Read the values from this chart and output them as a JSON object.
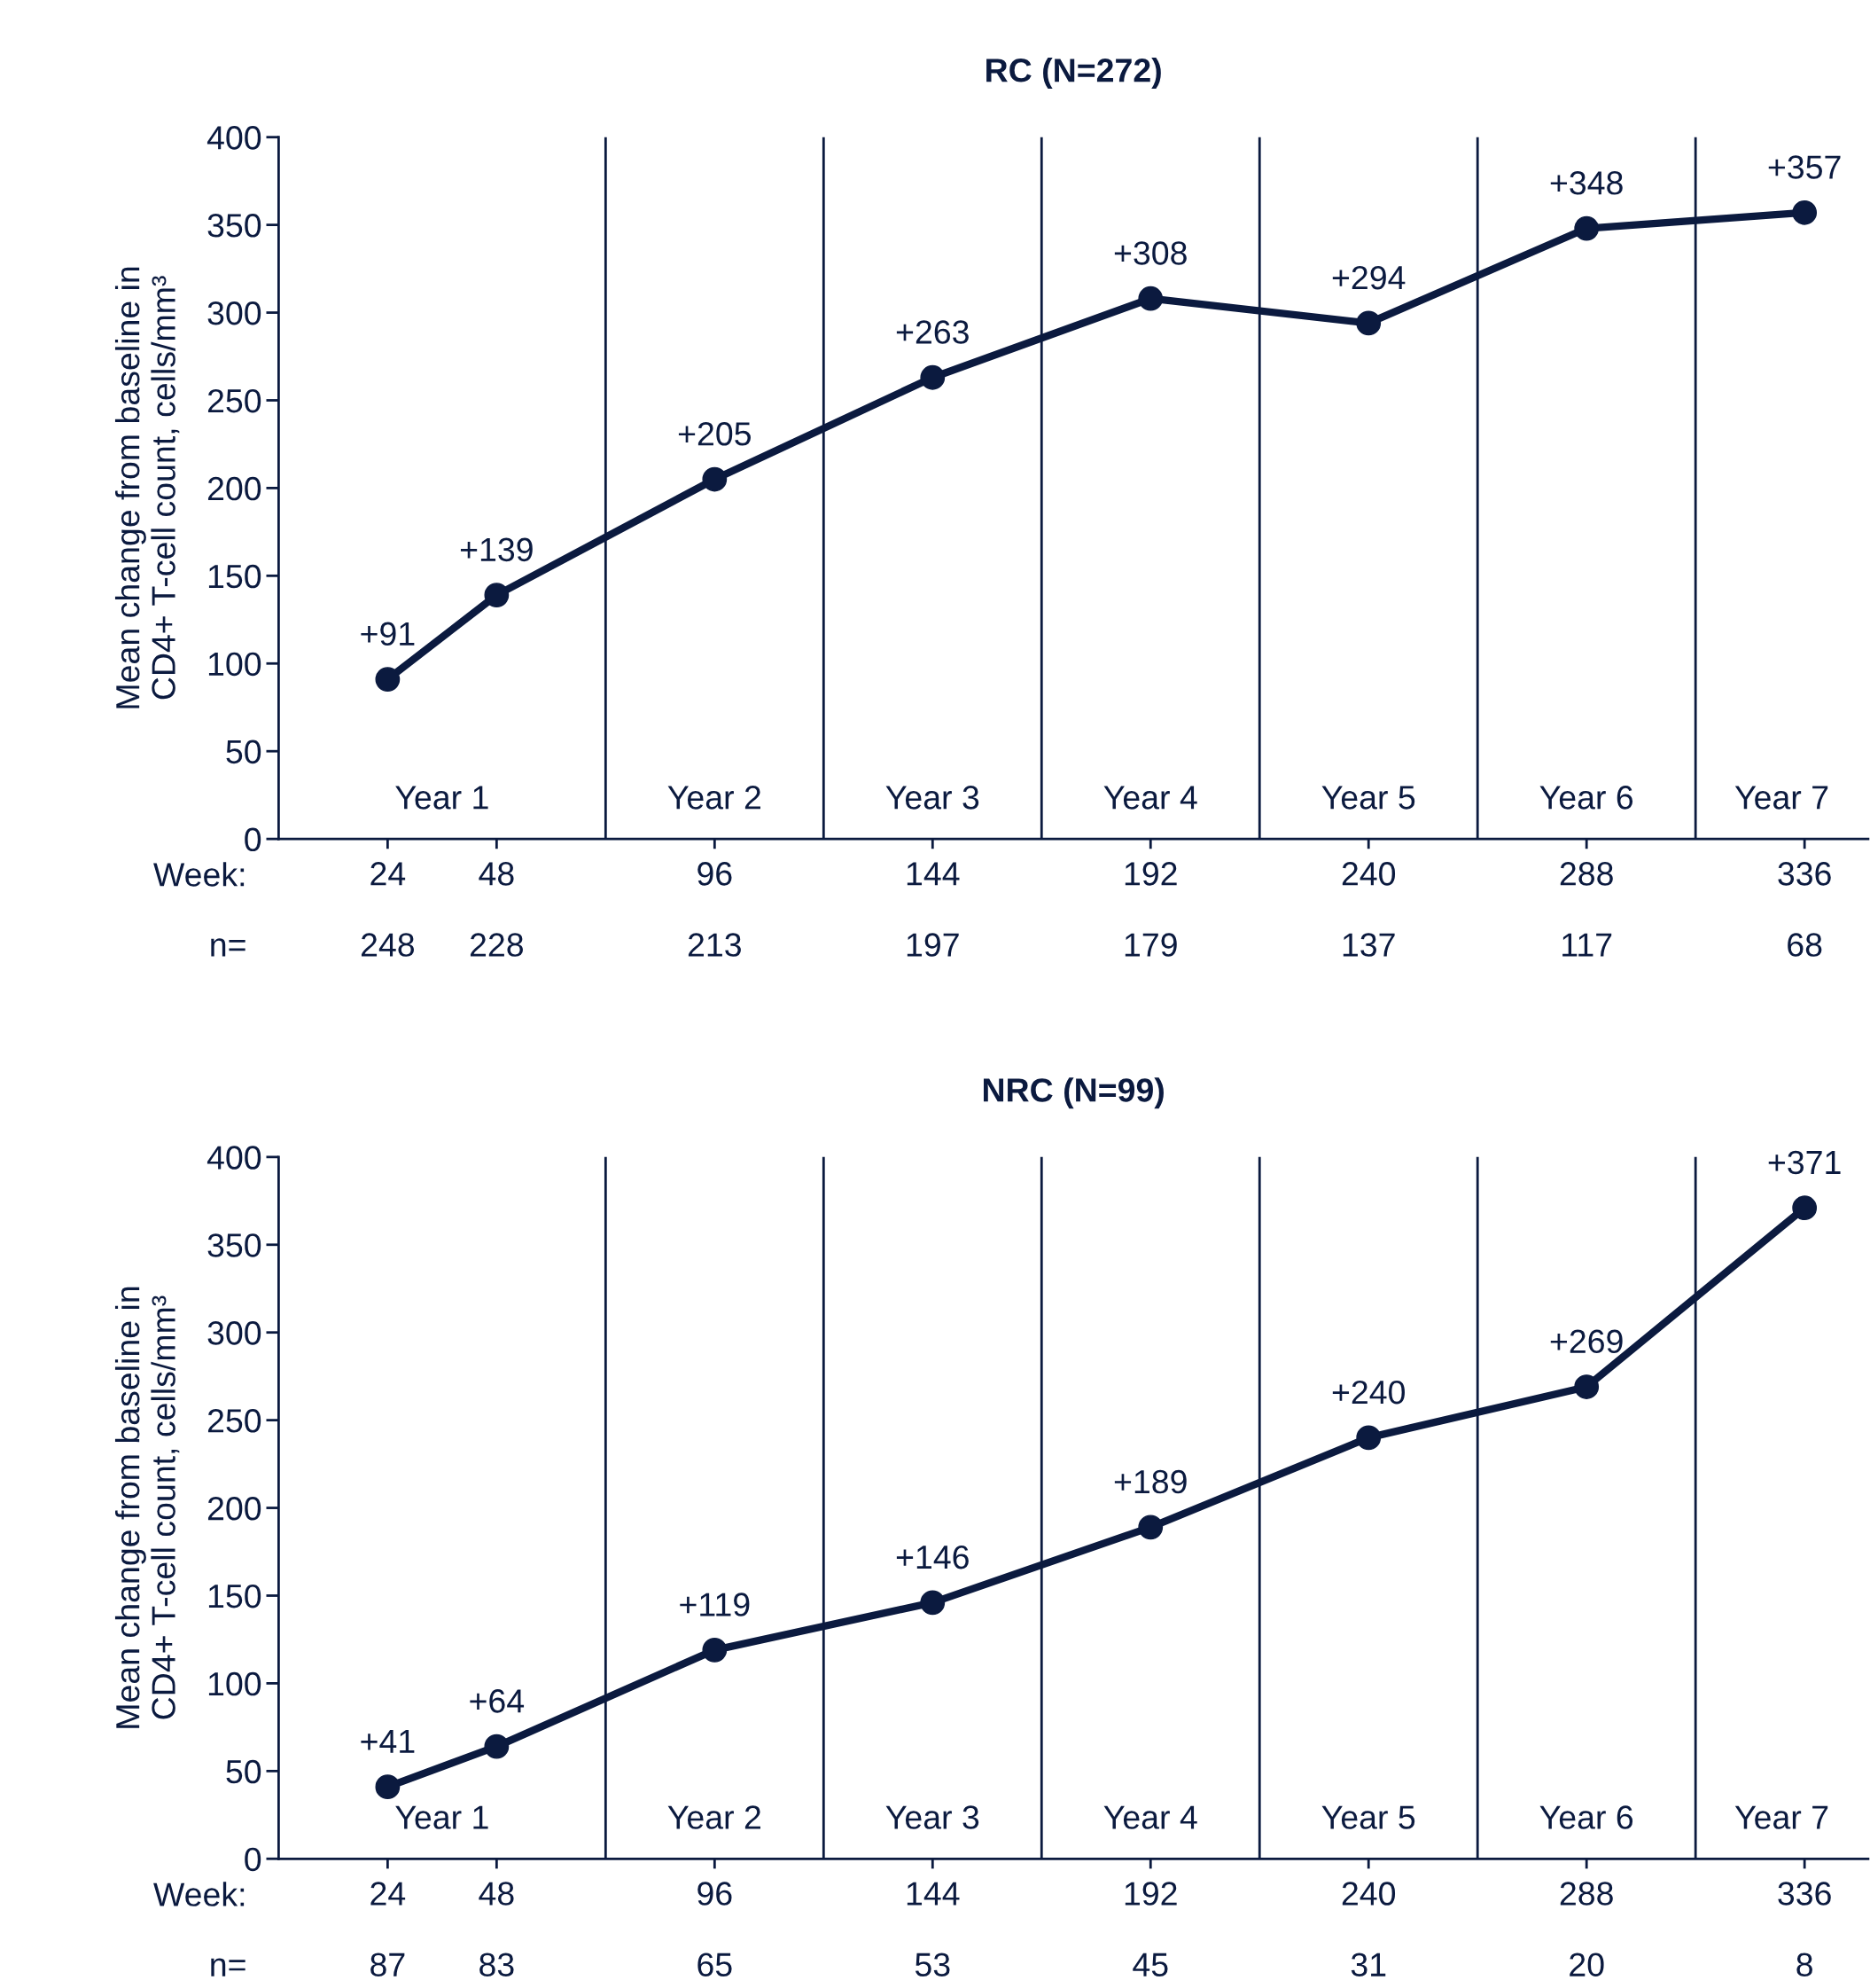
{
  "chart_data": [
    {
      "type": "line",
      "title": "RC (N=272)",
      "ylabel": "Mean change from baseline in\nCD4+ T-cell count, cells/mm³",
      "x": [
        24,
        48,
        96,
        144,
        192,
        240,
        288,
        336
      ],
      "series": [
        {
          "color": "#0b1a3f",
          "values": [
            91,
            139,
            205,
            263,
            308,
            294,
            348,
            357
          ],
          "value_labels": [
            "+91",
            "+139",
            "+205",
            "+263",
            "+308",
            "+294",
            "+348",
            "+357"
          ]
        }
      ],
      "xlim": [
        0,
        350
      ],
      "ylim": [
        0,
        400
      ],
      "yticks": [
        0,
        50,
        100,
        150,
        200,
        250,
        300,
        350,
        400
      ],
      "xticks": [
        24,
        48,
        96,
        144,
        192,
        240,
        288,
        336
      ],
      "ref_lines": [
        {
          "axis": "x",
          "value": 72,
          "color": "#0b1a3f"
        },
        {
          "axis": "x",
          "value": 120,
          "color": "#0b1a3f"
        },
        {
          "axis": "x",
          "value": 168,
          "color": "#0b1a3f"
        },
        {
          "axis": "x",
          "value": 216,
          "color": "#0b1a3f"
        },
        {
          "axis": "x",
          "value": 264,
          "color": "#0b1a3f"
        },
        {
          "axis": "x",
          "value": 312,
          "color": "#0b1a3f"
        }
      ],
      "annotations": [
        "Week:",
        "n=",
        "Year 1",
        "Year 2",
        "Year 3",
        "Year 4",
        "Year 5",
        "Year 6",
        "Year 7",
        "248",
        "228",
        "213",
        "197",
        "179",
        "137",
        "117",
        "68"
      ],
      "marker": "circle",
      "line_style": "solid",
      "grid": false,
      "legend": false
    },
    {
      "type": "line",
      "title": "NRC (N=99)",
      "ylabel": "Mean change from baseline in\nCD4+ T-cell count, cells/mm³",
      "x": [
        24,
        48,
        96,
        144,
        192,
        240,
        288,
        336
      ],
      "series": [
        {
          "color": "#0b1a3f",
          "values": [
            41,
            64,
            119,
            146,
            189,
            240,
            269,
            371
          ],
          "value_labels": [
            "+41",
            "+64",
            "+119",
            "+146",
            "+189",
            "+240",
            "+269",
            "+371"
          ]
        }
      ],
      "xlim": [
        0,
        350
      ],
      "ylim": [
        0,
        400
      ],
      "yticks": [
        0,
        50,
        100,
        150,
        200,
        250,
        300,
        350,
        400
      ],
      "xticks": [
        24,
        48,
        96,
        144,
        192,
        240,
        288,
        336
      ],
      "ref_lines": [
        {
          "axis": "x",
          "value": 72,
          "color": "#0b1a3f"
        },
        {
          "axis": "x",
          "value": 120,
          "color": "#0b1a3f"
        },
        {
          "axis": "x",
          "value": 168,
          "color": "#0b1a3f"
        },
        {
          "axis": "x",
          "value": 216,
          "color": "#0b1a3f"
        },
        {
          "axis": "x",
          "value": 264,
          "color": "#0b1a3f"
        },
        {
          "axis": "x",
          "value": 312,
          "color": "#0b1a3f"
        }
      ],
      "annotations": [
        "Week:",
        "n=",
        "Year 1",
        "Year 2",
        "Year 3",
        "Year 4",
        "Year 5",
        "Year 6",
        "Year 7",
        "87",
        "83",
        "65",
        "53",
        "45",
        "31",
        "20",
        "8"
      ],
      "marker": "circle",
      "line_style": "solid",
      "grid": false,
      "legend": false
    }
  ]
}
